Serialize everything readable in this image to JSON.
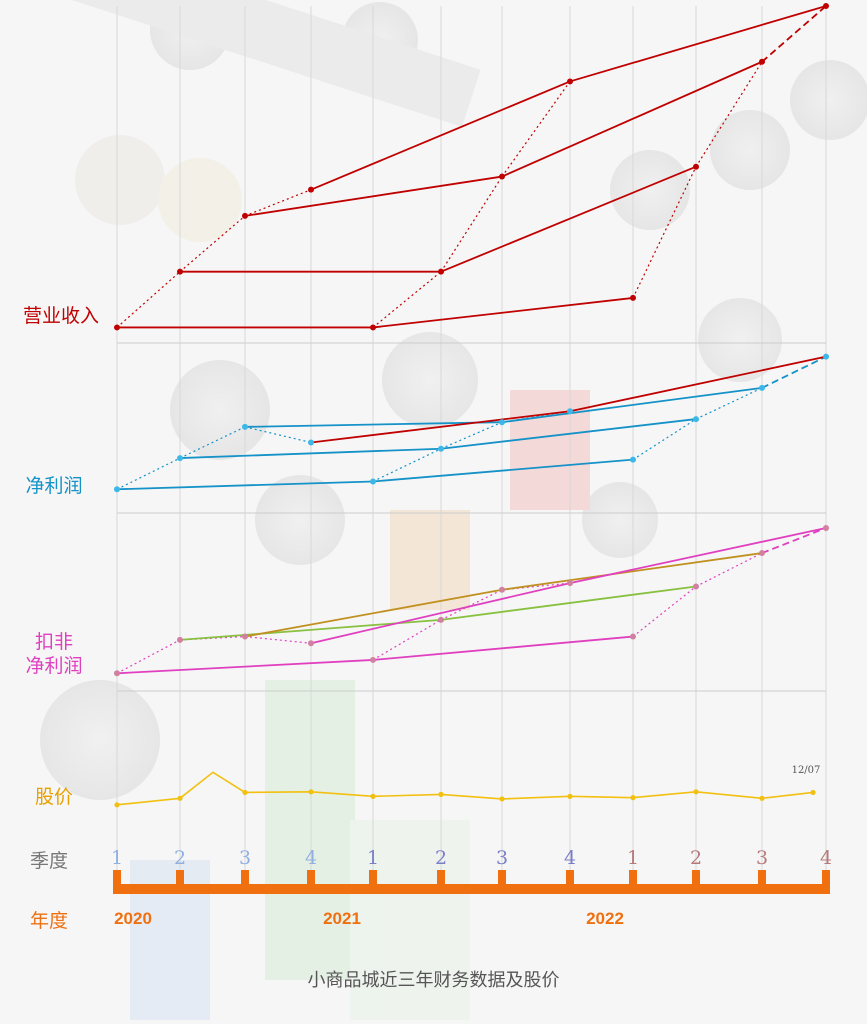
{
  "caption": "小商品城近三年财务数据及股价",
  "panels": [
    {
      "label_lines": [
        "营业收入"
      ],
      "color": "#c00000"
    },
    {
      "label_lines": [
        "净利润"
      ],
      "color": "#1592c8"
    },
    {
      "label_lines": [
        "扣非",
        "净利润"
      ],
      "color": "#e040c0"
    },
    {
      "label_lines": [
        "股价"
      ],
      "color": "#e8a000"
    }
  ],
  "axis": {
    "quarter_row_label": "季度",
    "year_row_label": "年度",
    "quarter_labels": [
      "1",
      "2",
      "3",
      "4",
      "1",
      "2",
      "3",
      "4",
      "1",
      "2",
      "3",
      "4"
    ],
    "quarter_colors": [
      "#8fb0e0",
      "#8fb0e0",
      "#8fb0e0",
      "#8fb0e0",
      "#7b7fc7",
      "#7b7fc7",
      "#7b7fc7",
      "#7b7fc7",
      "#b77a7a",
      "#b77a7a",
      "#b77a7a",
      "#b77a7a"
    ],
    "years": [
      "2020",
      "2021",
      "2022"
    ],
    "timeline_color": "#f07010"
  },
  "chart_data": [
    {
      "type": "line",
      "title": "营业收入",
      "x": [
        "2020Q1",
        "2020Q2",
        "2020Q3",
        "2020Q4",
        "2021Q1",
        "2021Q2",
        "2021Q3",
        "2021Q4",
        "2022Q1",
        "2022Q2",
        "2022Q3",
        "2022Q4"
      ],
      "cumulative_values": [
        2,
        19,
        36,
        44,
        2,
        19,
        48,
        77,
        11,
        51,
        83,
        100
      ],
      "ylim": [
        0,
        100
      ],
      "color": "#c00000"
    },
    {
      "type": "line",
      "title": "净利润",
      "x": [
        "2020Q1",
        "2020Q2",
        "2020Q3",
        "2020Q4",
        "2021Q1",
        "2021Q2",
        "2021Q3",
        "2021Q4",
        "2022Q1",
        "2022Q2",
        "2022Q3",
        "2022Q4"
      ],
      "cumulative_values": [
        12,
        32,
        52,
        42,
        17,
        38,
        55,
        62,
        31,
        57,
        77,
        97
      ],
      "ylim": [
        0,
        100
      ],
      "color": "#1592c8",
      "segment_color_q4": "#c00000"
    },
    {
      "type": "line",
      "title": "扣非净利润",
      "x": [
        "2020Q1",
        "2020Q2",
        "2020Q3",
        "2020Q4",
        "2021Q1",
        "2021Q2",
        "2021Q3",
        "2021Q4",
        "2022Q1",
        "2022Q2",
        "2022Q3",
        "2022Q4"
      ],
      "cumulative_values": [
        10,
        30,
        32,
        28,
        18,
        42,
        60,
        64,
        32,
        62,
        82,
        97
      ],
      "ylim": [
        0,
        100
      ],
      "color": "#e040c0",
      "segment_colors": {
        "q2": "#88c040",
        "q3": "#c09020"
      }
    },
    {
      "type": "line",
      "title": "股价",
      "x": [
        "2020Q1",
        "2020Q2",
        "2020Q2-peak",
        "2020Q3",
        "2020Q4",
        "2021Q1",
        "2021Q2",
        "2021Q3",
        "2021Q4",
        "2022Q1",
        "2022Q2",
        "2022Q3",
        "2022Q4"
      ],
      "values": [
        8,
        18,
        58,
        27,
        28,
        21,
        24,
        17,
        21,
        19,
        28,
        18,
        27
      ],
      "ylim": [
        0,
        100
      ],
      "color": "#f2c010",
      "annotation": "12/07"
    }
  ]
}
